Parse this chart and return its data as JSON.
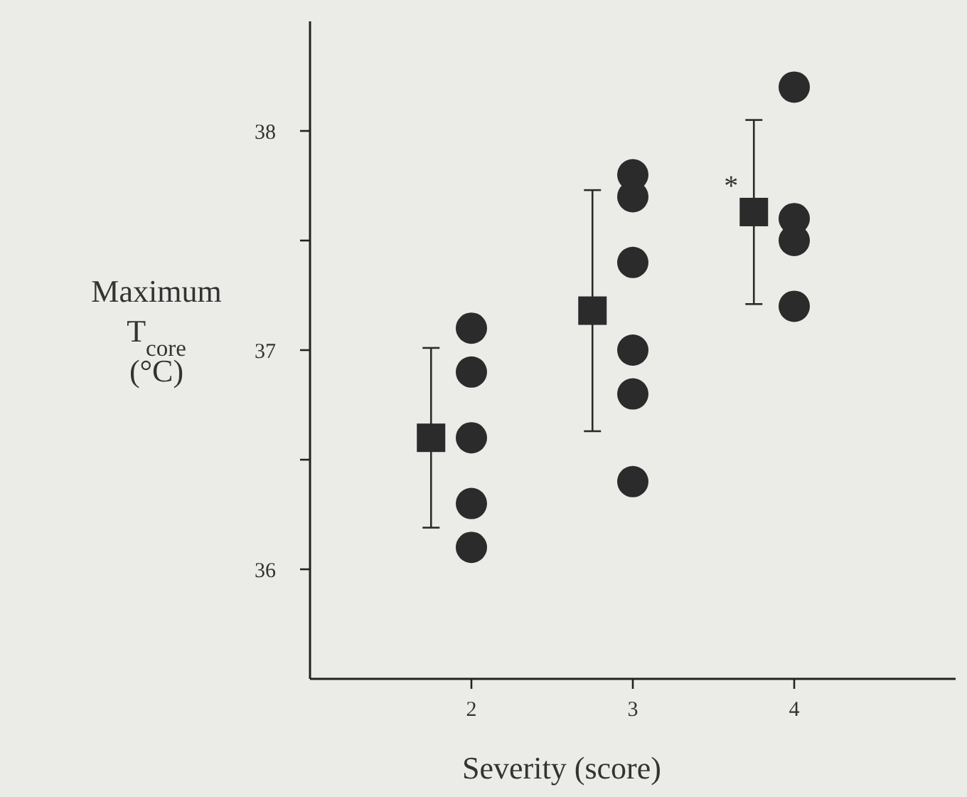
{
  "chart_data": {
    "type": "scatter",
    "xlabel": "Severity (score)",
    "ylabel": "Maximum T$_{core}$ (°C)",
    "xlim": [
      1,
      5
    ],
    "xticks": [
      2,
      3,
      4
    ],
    "ylim": [
      35.5,
      38.5
    ],
    "yticks": [
      36,
      {
        "value": 36.5,
        "label": null
      },
      37,
      {
        "value": 37.5,
        "label": null
      },
      38
    ],
    "grid": false,
    "series": [
      {
        "color": "#2b2b2b",
        "marker": "square",
        "x": [
          1.75,
          2.75,
          3.75
        ],
        "values": [
          36.6,
          37.18,
          37.63
        ],
        "errors": [
          0.41,
          0.55,
          0.42
        ]
      },
      {
        "color": "#2b2b2b",
        "marker": "circle",
        "x": [
          2,
          2,
          2,
          2,
          2,
          3,
          3,
          3,
          3,
          3,
          3,
          4,
          4,
          4,
          4
        ],
        "values": [
          37.1,
          36.9,
          36.6,
          36.3,
          36.1,
          37.8,
          37.7,
          37.4,
          37.0,
          36.8,
          36.4,
          38.2,
          37.6,
          37.5,
          37.2
        ]
      }
    ],
    "annotations": [
      {
        "text": "*",
        "x": 3.75,
        "y": 37.63
      }
    ]
  }
}
